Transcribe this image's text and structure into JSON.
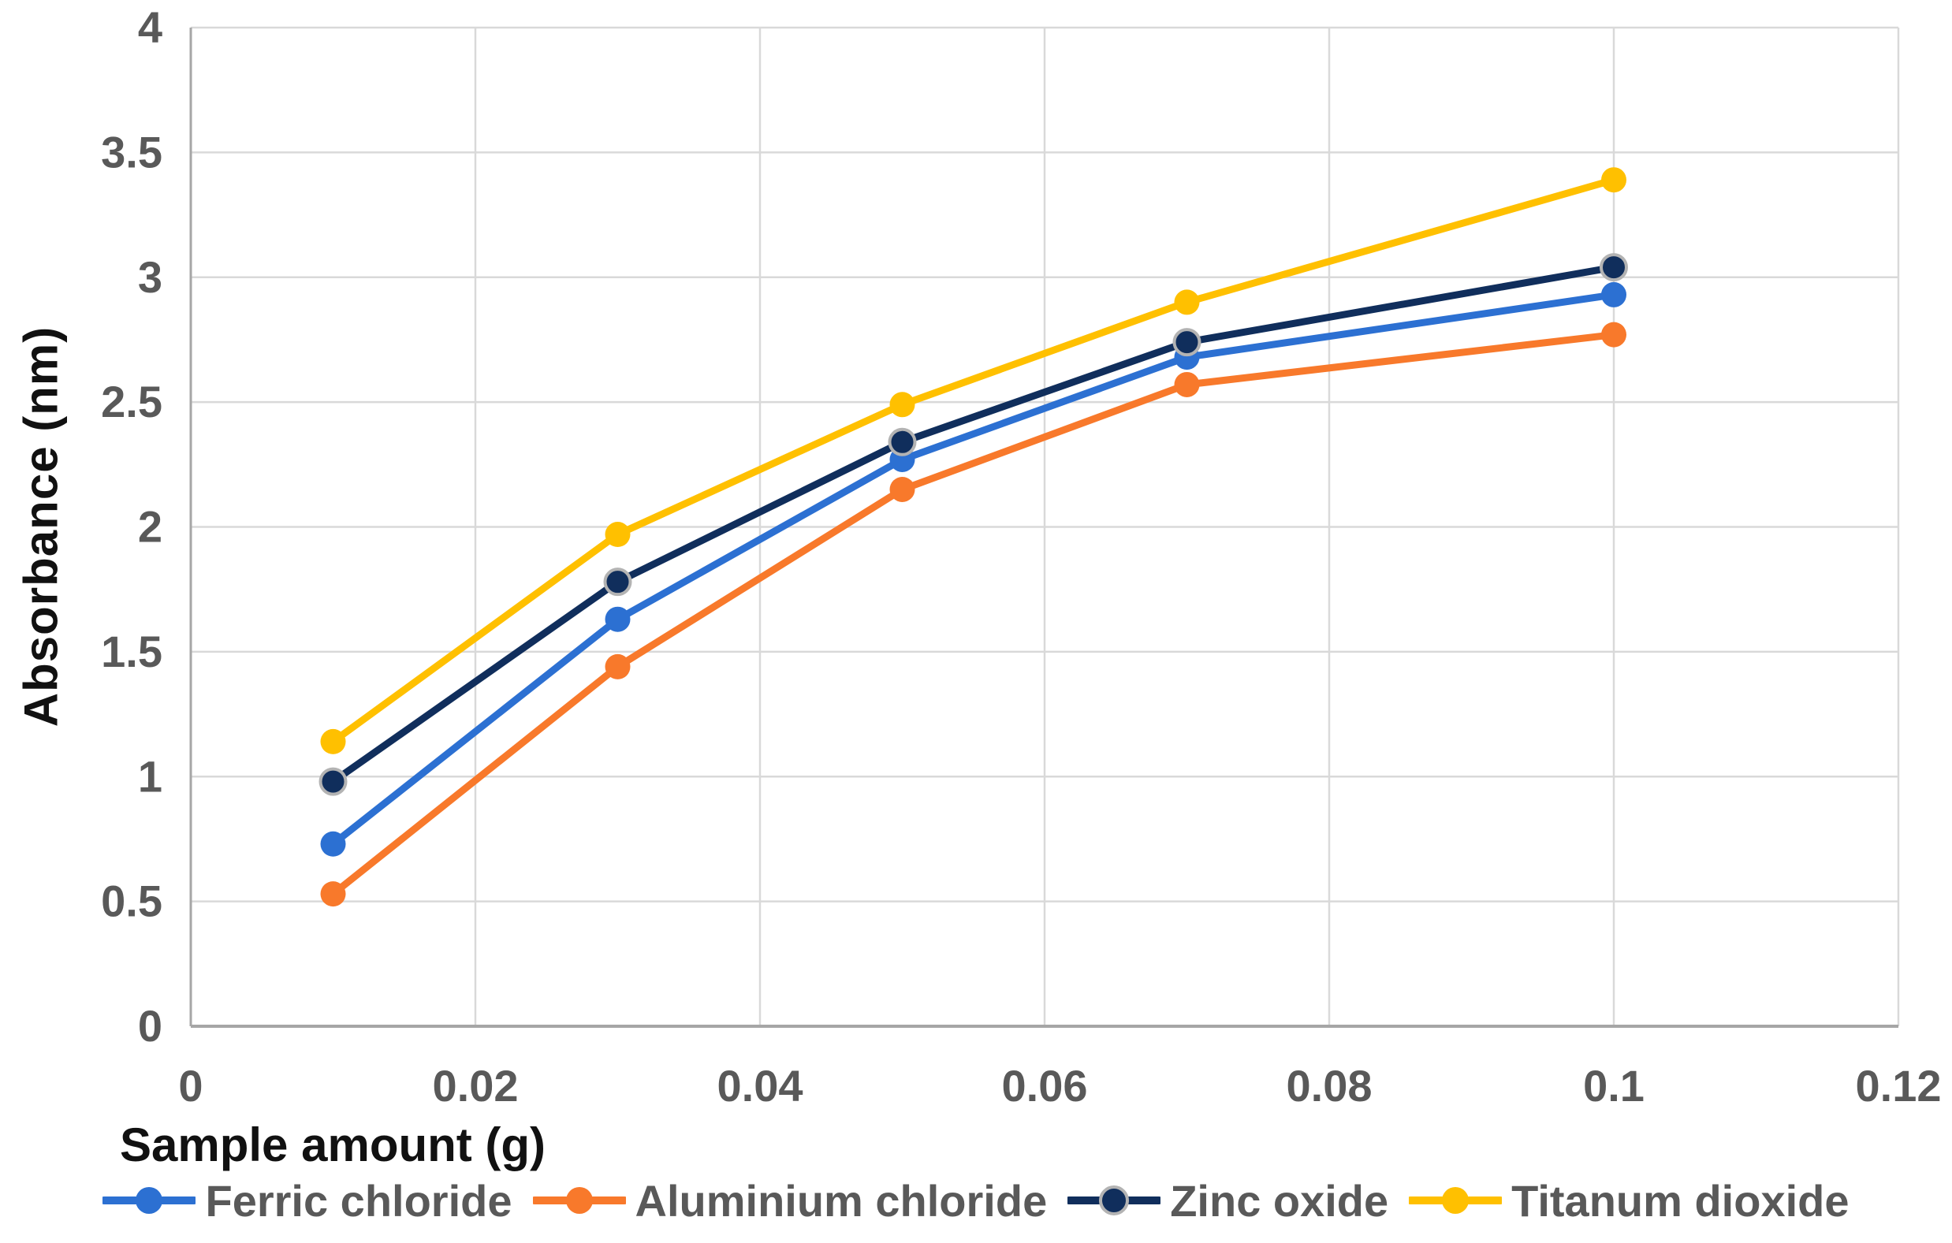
{
  "chart_data": {
    "type": "line",
    "title": "",
    "xlabel": "Sample amount (g)",
    "ylabel": "Absorbance (nm)",
    "x": [
      0.01,
      0.03,
      0.05,
      0.07,
      0.1
    ],
    "series": [
      {
        "name": "Ferric chloride",
        "color": "#2C70D2",
        "values": [
          0.73,
          1.63,
          2.27,
          2.68,
          2.93
        ]
      },
      {
        "name": "Aluminium chloride",
        "color": "#F8792B",
        "values": [
          0.53,
          1.44,
          2.15,
          2.57,
          2.77
        ]
      },
      {
        "name": "Zinc oxide",
        "color": "#102E5C",
        "marker_outline": "#B3B3B3",
        "values": [
          0.98,
          1.78,
          2.34,
          2.74,
          3.04
        ]
      },
      {
        "name": "Titanum dioxide",
        "color": "#FFC000",
        "values": [
          1.14,
          1.97,
          2.49,
          2.9,
          3.39
        ]
      }
    ],
    "xlim": [
      0,
      0.12
    ],
    "ylim": [
      0,
      4
    ],
    "x_tick_labels": [
      "0",
      "0.02",
      "0.04",
      "0.06",
      "0.08",
      "0.1",
      "0.12"
    ],
    "x_tick_values": [
      0,
      0.02,
      0.04,
      0.06,
      0.08,
      0.1,
      0.12
    ],
    "y_tick_labels": [
      "0",
      "0.5",
      "1",
      "1.5",
      "2",
      "2.5",
      "3",
      "3.5",
      "4"
    ],
    "y_tick_values": [
      0,
      0.5,
      1,
      1.5,
      2,
      2.5,
      3,
      3.5,
      4
    ],
    "grid": true,
    "legend_position": "bottom"
  },
  "style": {
    "gridline_color": "#D9D9D9",
    "axis_line_color": "#A6A6A6",
    "tick_label_color": "#595959",
    "axis_title_color": "#111111"
  }
}
